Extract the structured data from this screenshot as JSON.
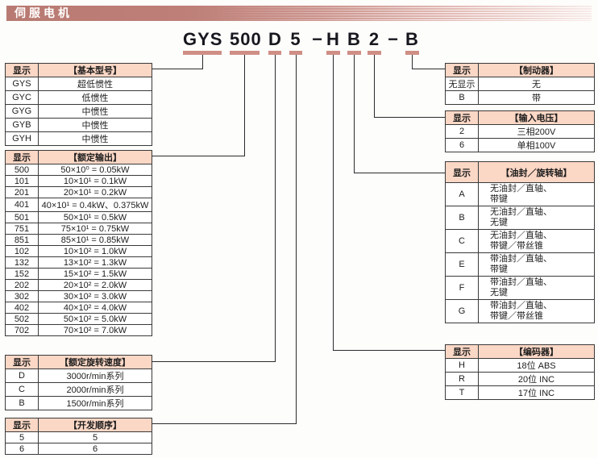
{
  "page": {
    "title": "伺服电机"
  },
  "colors": {
    "header_bar": "#bd7f77",
    "table_header_bg": "#fbd7c5",
    "underline": "#cf8e85",
    "line": "#2b2b2b"
  },
  "model": {
    "full": "GYS 500 D 5 -H B 2 -B",
    "segments": [
      {
        "text": "GYS",
        "underlined": true
      },
      {
        "text": "500",
        "underlined": true
      },
      {
        "text": "D",
        "underlined": true
      },
      {
        "text": "5",
        "underlined": true
      },
      {
        "text": "−",
        "underlined": false
      },
      {
        "text": "H",
        "underlined": true
      },
      {
        "text": "B",
        "underlined": true
      },
      {
        "text": "2",
        "underlined": true
      },
      {
        "text": "−",
        "underlined": false
      },
      {
        "text": "B",
        "underlined": true
      }
    ]
  },
  "tables": {
    "basic": {
      "header": [
        "显示",
        "【基本型号】"
      ],
      "rows": [
        [
          "GYS",
          "超低惯性"
        ],
        [
          "GYC",
          "低惯性"
        ],
        [
          "GYG",
          "中惯性"
        ],
        [
          "GYB",
          "中惯性"
        ],
        [
          "GYH",
          "中惯性"
        ]
      ]
    },
    "output": {
      "header": [
        "显示",
        "【额定输出】"
      ],
      "rows": [
        [
          "500",
          "50×10⁰ = 0.05kW"
        ],
        [
          "101",
          "10×10¹ = 0.1kW"
        ],
        [
          "201",
          "20×10¹ = 0.2kW"
        ],
        [
          "401",
          "40×10¹ = 0.4kW、0.375kW"
        ],
        [
          "501",
          "50×10¹ = 0.5kW"
        ],
        [
          "751",
          "75×10¹ = 0.75kW"
        ],
        [
          "851",
          "85×10¹ = 0.85kW"
        ],
        [
          "102",
          "10×10² = 1.0kW"
        ],
        [
          "132",
          "13×10² = 1.3kW"
        ],
        [
          "152",
          "15×10² = 1.5kW"
        ],
        [
          "202",
          "20×10² = 2.0kW"
        ],
        [
          "302",
          "30×10² = 3.0kW"
        ],
        [
          "402",
          "40×10² = 4.0kW"
        ],
        [
          "502",
          "50×10² = 5.0kW"
        ],
        [
          "702",
          "70×10² = 7.0kW"
        ]
      ]
    },
    "speed": {
      "header": [
        "显示",
        "【额定旋转速度】"
      ],
      "rows": [
        [
          "D",
          "3000r/min系列"
        ],
        [
          "C",
          "2000r/min系列"
        ],
        [
          "B",
          "1500r/min系列"
        ]
      ]
    },
    "dev": {
      "header": [
        "显示",
        "【开发顺序】"
      ],
      "rows": [
        [
          "5",
          "5"
        ],
        [
          "6",
          "6"
        ]
      ]
    },
    "brake": {
      "header": [
        "显示",
        "【制动器】"
      ],
      "rows": [
        [
          "无显示",
          "无"
        ],
        [
          "B",
          "带"
        ]
      ]
    },
    "voltage": {
      "header": [
        "显示",
        "【输入电压】"
      ],
      "rows": [
        [
          "2",
          "三相200V"
        ],
        [
          "6",
          "单相100V"
        ]
      ]
    },
    "oilseal": {
      "header": [
        "显示",
        "【油封／旋转轴】"
      ],
      "rows": [
        [
          "A",
          "无油封／直轴、\n带键"
        ],
        [
          "B",
          "无油封／直轴、\n无键"
        ],
        [
          "C",
          "无油封／直轴、\n带键／带丝锥"
        ],
        [
          "E",
          "带油封／直轴、\n带键"
        ],
        [
          "F",
          "带油封／直轴、\n无键"
        ],
        [
          "G",
          "带油封／直轴、\n带键／带丝锥"
        ]
      ]
    },
    "encoder": {
      "header": [
        "显示",
        "【编码器】"
      ],
      "rows": [
        [
          "H",
          "18位 ABS"
        ],
        [
          "R",
          "20位 INC"
        ],
        [
          "T",
          "17位 INC"
        ]
      ]
    }
  }
}
